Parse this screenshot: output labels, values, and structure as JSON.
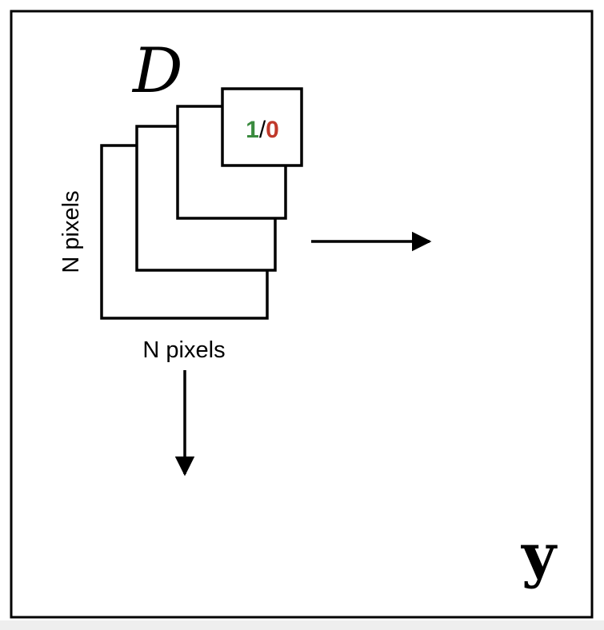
{
  "diagram": {
    "dataset_symbol": "D",
    "output_symbol": "y",
    "patch_width_label": "N pixels",
    "patch_height_label": "N pixels",
    "patch_value": {
      "positive": "1",
      "separator": "/",
      "negative": "0"
    }
  },
  "colors": {
    "positive": "#3a8a3e",
    "negative": "#c0392b",
    "separator": "#000000",
    "stroke": "#000000"
  }
}
